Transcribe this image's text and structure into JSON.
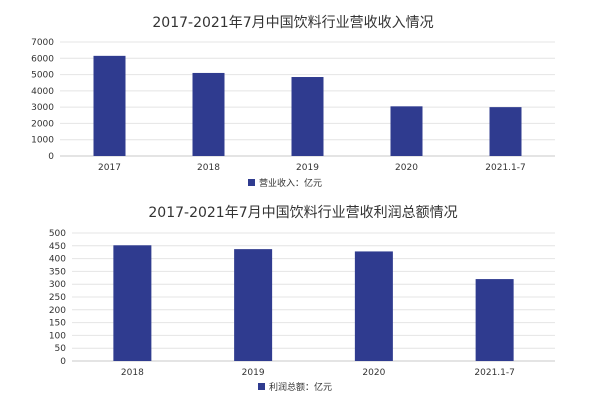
{
  "chart_data": [
    {
      "type": "bar",
      "title": "2017-2021年7月中国饮料行业营收收入情况",
      "categories": [
        "2017",
        "2018",
        "2019",
        "2020",
        "2021.1-7"
      ],
      "series": [
        {
          "name": "营业收入：亿元",
          "values": [
            6150,
            5100,
            4850,
            3050,
            3000
          ]
        }
      ],
      "ylim": [
        0,
        7000
      ],
      "yticks": [
        0,
        1000,
        2000,
        3000,
        4000,
        5000,
        6000,
        7000
      ],
      "grid": true,
      "legend": "bottom",
      "color": "#2f3b8f"
    },
    {
      "type": "bar",
      "title": "2017-2021年7月中国饮料行业营收利润总额情况",
      "categories": [
        "2018",
        "2019",
        "2020",
        "2021.1-7"
      ],
      "series": [
        {
          "name": "利润总额：亿元",
          "values": [
            452,
            437,
            428,
            320
          ]
        }
      ],
      "ylim": [
        0,
        500
      ],
      "yticks": [
        0,
        50,
        100,
        150,
        200,
        250,
        300,
        350,
        400,
        450,
        500
      ],
      "grid": true,
      "legend": "bottom",
      "color": "#2f3b8f"
    }
  ]
}
